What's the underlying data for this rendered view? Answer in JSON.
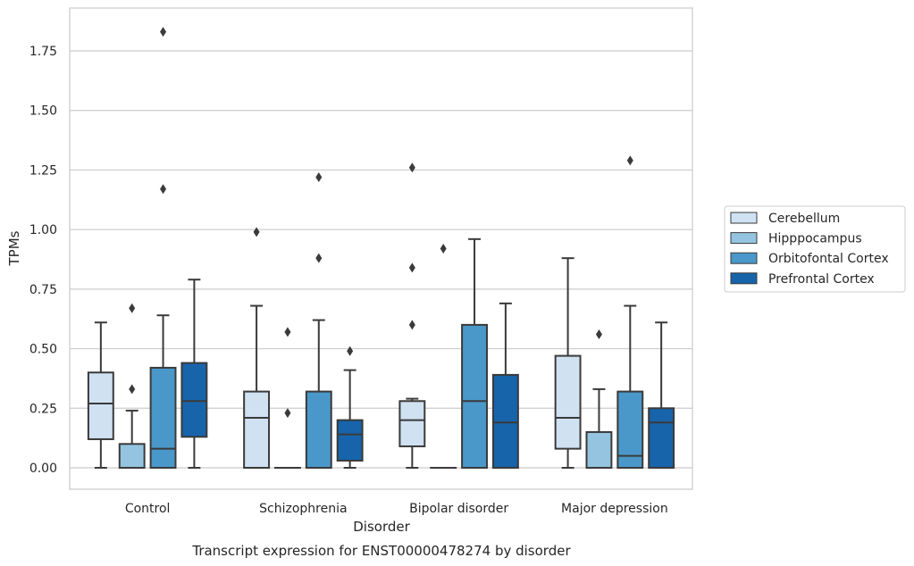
{
  "chart_data": {
    "type": "box",
    "title": "",
    "caption": "Transcript expression for ENST00000478274 by disorder",
    "xlabel": "Disorder",
    "ylabel": "TPMs",
    "ylim": [
      -0.09,
      1.93
    ],
    "yticks": [
      0.0,
      0.25,
      0.5,
      0.75,
      1.0,
      1.25,
      1.5,
      1.75
    ],
    "ytick_labels": [
      "0.00",
      "0.25",
      "0.50",
      "0.75",
      "1.00",
      "1.25",
      "1.50",
      "1.75"
    ],
    "grid": true,
    "legend_position": "right",
    "categories": [
      "Control",
      "Schizophrenia",
      "Bipolar disorder",
      "Major depression"
    ],
    "series": [
      {
        "name": "Cerebellum",
        "color": "#d0e1f2",
        "boxes": [
          {
            "whisker_low": 0.0,
            "q1": 0.12,
            "median": 0.27,
            "q3": 0.4,
            "whisker_high": 0.61,
            "outliers": []
          },
          {
            "whisker_low": 0.0,
            "q1": 0.0,
            "median": 0.21,
            "q3": 0.32,
            "whisker_high": 0.68,
            "outliers": [
              0.99
            ]
          },
          {
            "whisker_low": 0.0,
            "q1": 0.09,
            "median": 0.2,
            "q3": 0.28,
            "whisker_high": 0.29,
            "outliers": [
              0.6,
              0.84,
              1.26
            ]
          },
          {
            "whisker_low": 0.0,
            "q1": 0.08,
            "median": 0.21,
            "q3": 0.47,
            "whisker_high": 0.88,
            "outliers": []
          }
        ]
      },
      {
        "name": "Hipppocampus",
        "color": "#94c4df",
        "boxes": [
          {
            "whisker_low": 0.0,
            "q1": 0.0,
            "median": 0.0,
            "q3": 0.1,
            "whisker_high": 0.24,
            "outliers": [
              0.33,
              0.67
            ]
          },
          {
            "whisker_low": 0.0,
            "q1": 0.0,
            "median": 0.0,
            "q3": 0.0,
            "whisker_high": 0.0,
            "outliers": [
              0.23,
              0.57
            ]
          },
          {
            "whisker_low": 0.0,
            "q1": 0.0,
            "median": 0.0,
            "q3": 0.0,
            "whisker_high": 0.0,
            "outliers": [
              0.92
            ]
          },
          {
            "whisker_low": 0.0,
            "q1": 0.0,
            "median": 0.0,
            "q3": 0.15,
            "whisker_high": 0.33,
            "outliers": [
              0.56
            ]
          }
        ]
      },
      {
        "name": "Orbitofontal Cortex",
        "color": "#4a98c9",
        "boxes": [
          {
            "whisker_low": 0.0,
            "q1": 0.0,
            "median": 0.08,
            "q3": 0.42,
            "whisker_high": 0.64,
            "outliers": [
              1.17,
              1.83
            ]
          },
          {
            "whisker_low": 0.0,
            "q1": 0.0,
            "median": 0.0,
            "q3": 0.32,
            "whisker_high": 0.62,
            "outliers": [
              0.88,
              1.22
            ]
          },
          {
            "whisker_low": 0.0,
            "q1": 0.0,
            "median": 0.28,
            "q3": 0.6,
            "whisker_high": 0.96,
            "outliers": []
          },
          {
            "whisker_low": 0.0,
            "q1": 0.0,
            "median": 0.05,
            "q3": 0.32,
            "whisker_high": 0.68,
            "outliers": [
              1.29
            ]
          }
        ]
      },
      {
        "name": "Prefrontal Cortex",
        "color": "#1764ab",
        "boxes": [
          {
            "whisker_low": 0.0,
            "q1": 0.13,
            "median": 0.28,
            "q3": 0.44,
            "whisker_high": 0.79,
            "outliers": []
          },
          {
            "whisker_low": 0.0,
            "q1": 0.03,
            "median": 0.14,
            "q3": 0.2,
            "whisker_high": 0.41,
            "outliers": [
              0.49
            ]
          },
          {
            "whisker_low": 0.0,
            "q1": 0.0,
            "median": 0.19,
            "q3": 0.39,
            "whisker_high": 0.69,
            "outliers": []
          },
          {
            "whisker_low": 0.0,
            "q1": 0.0,
            "median": 0.19,
            "q3": 0.25,
            "whisker_high": 0.61,
            "outliers": []
          }
        ]
      }
    ]
  }
}
